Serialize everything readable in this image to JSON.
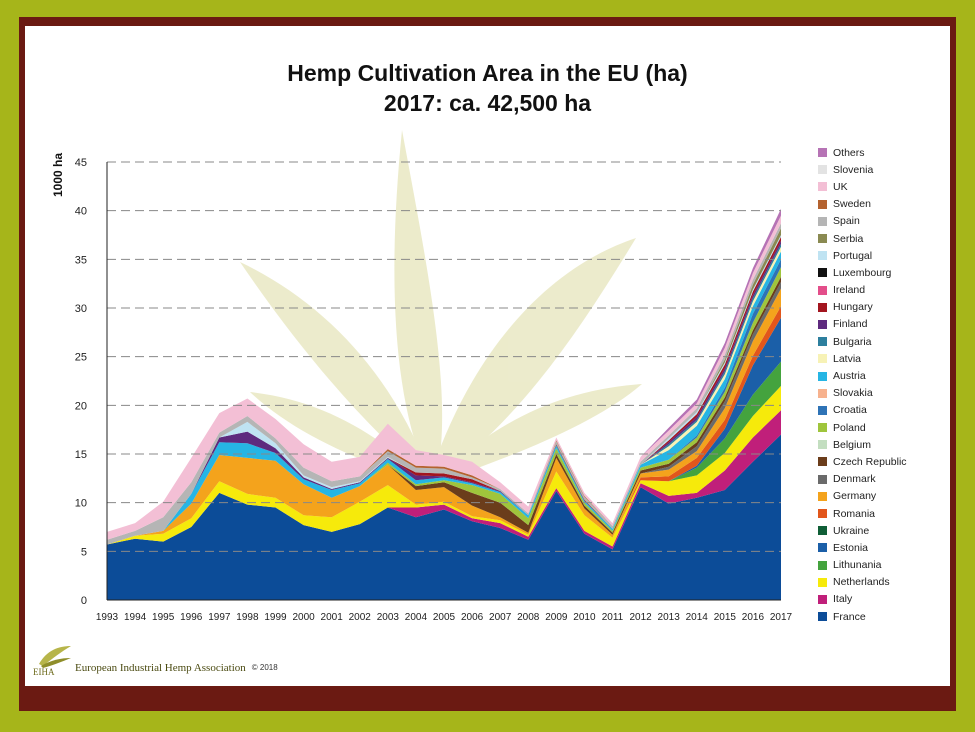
{
  "chart_data": {
    "type": "area",
    "stacked": true,
    "title": "Hemp Cultivation Area in the EU (ha)",
    "subtitle": "2017: ca. 42,500 ha",
    "ylabel": "1000 ha",
    "xlabel": "",
    "ylim": [
      0,
      45
    ],
    "y_ticks": [
      0,
      5,
      10,
      15,
      20,
      25,
      30,
      35,
      40,
      45
    ],
    "grid": true,
    "legend_position": "right",
    "x": [
      "1993",
      "1994",
      "1995",
      "1996",
      "1997",
      "1998",
      "1999",
      "2000",
      "2001",
      "2002",
      "2003",
      "2004",
      "2005",
      "2006",
      "2007",
      "2008",
      "2009",
      "2010",
      "2011",
      "2012",
      "2013",
      "2014",
      "2015",
      "2016",
      "2017"
    ],
    "series": [
      {
        "name": "France",
        "color": "#0c4c98",
        "values": [
          5.7,
          6.3,
          6.0,
          7.5,
          11.0,
          9.8,
          9.5,
          7.7,
          7.0,
          7.8,
          9.5,
          8.5,
          9.3,
          8.1,
          7.4,
          6.2,
          11.2,
          6.8,
          5.2,
          11.6,
          9.9,
          10.5,
          11.3,
          14.2,
          17.0
        ]
      },
      {
        "name": "Italy",
        "color": "#c01f7a",
        "values": [
          0,
          0,
          0,
          0,
          0,
          0,
          0,
          0,
          0,
          0,
          0,
          1.0,
          0.5,
          0.3,
          0.5,
          0.3,
          0.3,
          0.3,
          0.3,
          0.4,
          0.8,
          0.5,
          2.0,
          2.5,
          2.5
        ]
      },
      {
        "name": "Netherlands",
        "color": "#f6ea0b",
        "values": [
          0,
          0.3,
          0.8,
          0.9,
          1.2,
          1.1,
          1.0,
          1.0,
          1.5,
          2.3,
          2.3,
          0.3,
          0.3,
          0.2,
          0.3,
          0.2,
          1.7,
          1.6,
          0.9,
          0.3,
          1.5,
          1.8,
          1.8,
          2.2,
          2.5
        ]
      },
      {
        "name": "Lithunania",
        "color": "#44a33e",
        "values": [
          0,
          0,
          0,
          0,
          0,
          0,
          0,
          0,
          0,
          0,
          0,
          0,
          0,
          0,
          0,
          0,
          0,
          0,
          0,
          0,
          0,
          0.8,
          1.5,
          2.2,
          2.5
        ]
      },
      {
        "name": "Estonia",
        "color": "#1b5fa8",
        "values": [
          0,
          0,
          0,
          0,
          0,
          0,
          0,
          0,
          0,
          0,
          0,
          0,
          0,
          0,
          0,
          0,
          0,
          0,
          0,
          0,
          0,
          0.2,
          1.0,
          3.0,
          4.5
        ]
      },
      {
        "name": "Ukraine",
        "color": "#0f5e36",
        "values": [
          0,
          0,
          0,
          0,
          0,
          0,
          0,
          0,
          0,
          0,
          0,
          0,
          0,
          0,
          0,
          0,
          0,
          0,
          0,
          0,
          0,
          0,
          0,
          0,
          0
        ]
      },
      {
        "name": "Romania",
        "color": "#e2561b",
        "values": [
          0,
          0,
          0,
          0,
          0,
          0,
          0,
          0,
          0,
          0,
          0,
          0,
          0,
          0,
          0,
          0,
          0,
          0,
          0,
          0.3,
          0.5,
          0.8,
          0.9,
          1.0,
          1.2
        ]
      },
      {
        "name": "Germany",
        "color": "#f4a31c",
        "values": [
          0,
          0,
          0.3,
          1.5,
          2.7,
          3.7,
          3.8,
          3.2,
          2.0,
          1.6,
          2.1,
          1.5,
          1.5,
          1.1,
          0.3,
          0.2,
          1.4,
          0.7,
          0.3,
          0.4,
          0.7,
          0.7,
          1.2,
          1.5,
          1.8
        ]
      },
      {
        "name": "Denmark",
        "color": "#6a6a6a",
        "values": [
          0,
          0,
          0,
          0,
          0,
          0,
          0,
          0,
          0,
          0,
          0,
          0,
          0,
          0,
          0,
          0,
          0,
          0,
          0,
          0,
          0.3,
          0.5,
          0.7,
          0.7,
          0.7
        ]
      },
      {
        "name": "Czech Republic",
        "color": "#6b3d1b",
        "values": [
          0,
          0,
          0,
          0,
          0,
          0,
          0,
          0,
          0,
          0,
          0,
          0.4,
          0.5,
          1.3,
          1.5,
          0.8,
          0.4,
          0.3,
          0.2,
          0.3,
          0.3,
          0.4,
          0.4,
          0.4,
          0.5
        ]
      },
      {
        "name": "Belgium",
        "color": "#c3dec0",
        "values": [
          0,
          0,
          0,
          0,
          0,
          0,
          0,
          0,
          0,
          0,
          0,
          0,
          0,
          0,
          0,
          0,
          0,
          0,
          0,
          0,
          0,
          0,
          0,
          0,
          0
        ]
      },
      {
        "name": "Poland",
        "color": "#9fc53c",
        "values": [
          0,
          0,
          0,
          0,
          0,
          0,
          0,
          0,
          0,
          0,
          0.2,
          0.2,
          0.2,
          0.8,
          0.9,
          0.7,
          0.6,
          0.3,
          0.2,
          0.3,
          0.4,
          0.5,
          0.6,
          0.8,
          1.0
        ]
      },
      {
        "name": "Croatia",
        "color": "#2e73b6",
        "values": [
          0,
          0,
          0,
          0,
          0,
          0,
          0,
          0,
          0,
          0,
          0,
          0,
          0,
          0,
          0,
          0,
          0,
          0,
          0,
          0,
          0,
          0.2,
          0.4,
          0.9,
          0.8
        ]
      },
      {
        "name": "Slovakia",
        "color": "#f7b28e",
        "values": [
          0,
          0,
          0,
          0,
          0,
          0,
          0,
          0,
          0,
          0,
          0,
          0,
          0,
          0,
          0,
          0,
          0,
          0,
          0,
          0,
          0,
          0,
          0,
          0,
          0
        ]
      },
      {
        "name": "Austria",
        "color": "#26b5e4",
        "values": [
          0,
          0,
          0,
          1.0,
          1.3,
          1.5,
          0.8,
          0.5,
          0.8,
          0.3,
          0.4,
          0.4,
          0.3,
          0.2,
          0.2,
          0.3,
          0.3,
          0.2,
          0.2,
          0.3,
          1.0,
          1.0,
          0.9,
          0.8,
          0.8
        ]
      },
      {
        "name": "Latvia",
        "color": "#f7f2b6",
        "values": [
          0,
          0,
          0,
          0,
          0,
          0,
          0,
          0,
          0,
          0,
          0,
          0,
          0,
          0,
          0,
          0,
          0,
          0,
          0,
          0,
          0.4,
          0.4,
          0.5,
          0.5,
          0.5
        ]
      },
      {
        "name": "Bulgaria",
        "color": "#2d7f9e",
        "values": [
          0,
          0,
          0,
          0,
          0,
          0,
          0,
          0,
          0,
          0,
          0,
          0,
          0,
          0,
          0,
          0,
          0,
          0,
          0,
          0,
          0.2,
          0.2,
          0.3,
          0.3,
          0.3
        ]
      },
      {
        "name": "Finland",
        "color": "#5e2a7e",
        "values": [
          0,
          0,
          0,
          0,
          0.5,
          1.2,
          0.5,
          0.2,
          0.1,
          0.1,
          0.1,
          0.5,
          0.1,
          0.1,
          0.1,
          0,
          0,
          0,
          0,
          0,
          0.2,
          0.3,
          0.3,
          0.3,
          0.3
        ]
      },
      {
        "name": "Hungary",
        "color": "#a3151f",
        "values": [
          0,
          0,
          0,
          0,
          0,
          0,
          0,
          0,
          0,
          0,
          0,
          0.3,
          0.3,
          0.3,
          0,
          0,
          0.1,
          0.1,
          0,
          0,
          0.2,
          0.3,
          0.4,
          0.4,
          0.4
        ]
      },
      {
        "name": "Ireland",
        "color": "#e34e8a",
        "values": [
          0,
          0,
          0,
          0,
          0,
          0,
          0,
          0,
          0,
          0,
          0,
          0,
          0,
          0,
          0,
          0,
          0,
          0,
          0,
          0,
          0,
          0,
          0,
          0,
          0
        ]
      },
      {
        "name": "Luxembourg",
        "color": "#111111",
        "values": [
          0,
          0,
          0,
          0,
          0,
          0,
          0,
          0,
          0,
          0,
          0,
          0,
          0,
          0,
          0,
          0,
          0,
          0,
          0,
          0,
          0,
          0,
          0,
          0,
          0
        ]
      },
      {
        "name": "Portugal",
        "color": "#bfe3f2",
        "values": [
          0,
          0,
          0,
          0,
          0,
          1.0,
          0.5,
          0.2,
          0.2,
          0.1,
          0.1,
          0,
          0,
          0,
          0,
          0,
          0,
          0,
          0,
          0,
          0.2,
          0.2,
          0.2,
          0.2,
          0.2
        ]
      },
      {
        "name": "Serbia",
        "color": "#8a8a52",
        "values": [
          0,
          0,
          0,
          0,
          0,
          0,
          0,
          0,
          0,
          0,
          0,
          0,
          0,
          0,
          0,
          0,
          0,
          0,
          0,
          0,
          0,
          0,
          0.3,
          0.5,
          0.7
        ]
      },
      {
        "name": "Spain",
        "color": "#b5b5b5",
        "values": [
          0.5,
          0.5,
          1.4,
          1.2,
          0.5,
          0.6,
          0.5,
          0.8,
          0.6,
          0.5,
          0.6,
          0.5,
          0.5,
          0.2,
          0.2,
          0.2,
          0.3,
          0.3,
          0.3,
          0.3,
          0.3,
          0.4,
          0.5,
          0.5,
          0.5
        ]
      },
      {
        "name": "Sweden",
        "color": "#b4622f",
        "values": [
          0,
          0,
          0,
          0,
          0,
          0,
          0,
          0,
          0,
          0,
          0.2,
          0.2,
          0.2,
          0.2,
          0,
          0,
          0.1,
          0.1,
          0,
          0,
          0,
          0,
          0,
          0,
          0
        ]
      },
      {
        "name": "UK",
        "color": "#f3bfd5",
        "values": [
          0.8,
          0.8,
          1.6,
          2.5,
          2.0,
          1.8,
          2.0,
          2.4,
          2.0,
          2.0,
          2.6,
          1.6,
          1.2,
          1.4,
          0.7,
          0.7,
          0.3,
          0.3,
          0.3,
          0.5,
          0.5,
          0.5,
          0.7,
          0.7,
          0.8
        ]
      },
      {
        "name": "Slovenia",
        "color": "#e3e3e3",
        "values": [
          0,
          0,
          0,
          0,
          0,
          0,
          0,
          0,
          0,
          0,
          0,
          0,
          0,
          0,
          0,
          0,
          0,
          0,
          0,
          0,
          0,
          0,
          0,
          0,
          0
        ]
      },
      {
        "name": "Others",
        "color": "#b673b5",
        "values": [
          0,
          0,
          0,
          0,
          0,
          0,
          0,
          0,
          0,
          0,
          0,
          0,
          0,
          0,
          0,
          0,
          0,
          0,
          0,
          0,
          0.3,
          0.4,
          0.5,
          0.5,
          0.7
        ]
      }
    ]
  },
  "footer": {
    "logo_text": "EIHA",
    "organization": "European Industrial Hemp Association",
    "copyright": "© 2018"
  }
}
